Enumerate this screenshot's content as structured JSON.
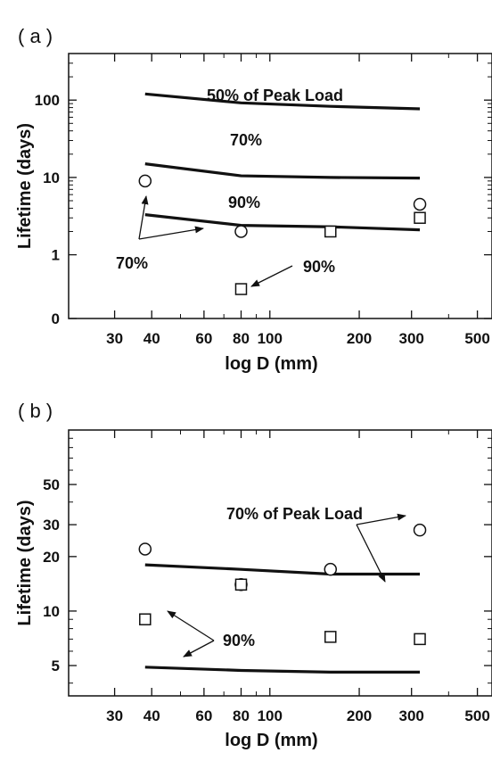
{
  "chart_data": [
    {
      "panel_label": "( a )",
      "type": "line",
      "x_scale": "log",
      "y_scale": "log",
      "xlabel": "log D (mm)",
      "ylabel": "Lifetime (days)",
      "xlim": [
        21,
        560
      ],
      "x_ticks": [
        30,
        40,
        60,
        80,
        100,
        200,
        300,
        500
      ],
      "y_ticks": [
        {
          "label": "0",
          "value": 0.15
        },
        {
          "label": "1",
          "value": 1
        },
        {
          "label": "10",
          "value": 10
        },
        {
          "label": "100",
          "value": 100
        }
      ],
      "ylim": [
        0.15,
        400
      ],
      "series": [
        {
          "kind": "line",
          "x": [
            38,
            80,
            160,
            320
          ],
          "y": [
            120,
            92,
            83,
            77
          ]
        },
        {
          "kind": "line",
          "x": [
            38,
            80,
            160,
            320
          ],
          "y": [
            15,
            10.5,
            10,
            9.8
          ]
        },
        {
          "kind": "line",
          "x": [
            38,
            80,
            160,
            320
          ],
          "y": [
            3.3,
            2.4,
            2.3,
            2.1
          ]
        },
        {
          "kind": "circle",
          "x": [
            38,
            80,
            320
          ],
          "y": [
            9,
            2.0,
            4.5
          ]
        },
        {
          "kind": "square",
          "x": [
            80,
            160,
            320
          ],
          "y": [
            0.36,
            2.0,
            3.0
          ]
        }
      ],
      "annotations": [
        "50% of Peak Load",
        "70%",
        "90%",
        "70%",
        "90%"
      ]
    },
    {
      "panel_label": "( b )",
      "type": "line",
      "x_scale": "log",
      "y_scale": "log",
      "xlabel": "log D (mm)",
      "ylabel": "Lifetime (days)",
      "xlim": [
        21,
        560
      ],
      "x_ticks": [
        30,
        40,
        60,
        80,
        100,
        200,
        300,
        500
      ],
      "y_ticks": [
        {
          "label": "5",
          "value": 5
        },
        {
          "label": "10",
          "value": 10
        },
        {
          "label": "20",
          "value": 20
        },
        {
          "label": "30",
          "value": 30
        },
        {
          "label": "50",
          "value": 50
        }
      ],
      "ylim": [
        3.4,
        100
      ],
      "series": [
        {
          "kind": "line",
          "x": [
            38,
            80,
            160,
            320
          ],
          "y": [
            18,
            17,
            16,
            16
          ]
        },
        {
          "kind": "line",
          "x": [
            38,
            80,
            160,
            320
          ],
          "y": [
            4.9,
            4.7,
            4.6,
            4.6
          ]
        },
        {
          "kind": "circle",
          "x": [
            38,
            80,
            160,
            320
          ],
          "y": [
            22,
            14,
            17,
            28
          ]
        },
        {
          "kind": "square",
          "x": [
            38,
            80,
            160,
            320
          ],
          "y": [
            9,
            14,
            7.2,
            7
          ]
        }
      ],
      "annotations": [
        "70% of Peak Load",
        "90%"
      ]
    }
  ]
}
